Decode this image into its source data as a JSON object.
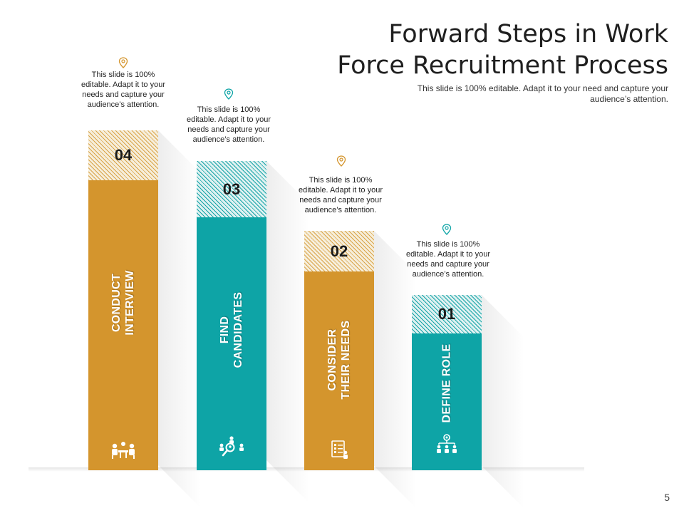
{
  "title": {
    "line1": "Forward Steps in Work",
    "line2": "Force Recruitment Process"
  },
  "subtitle": "This slide is 100% editable. Adapt it to your need and capture your audience’s attention.",
  "page_number": "5",
  "colors": {
    "gold": "#d4952d",
    "teal": "#0ea4a6"
  },
  "steps": [
    {
      "number": "04",
      "label_line1": "CONDUCT",
      "label_line2": "INTERVIEW",
      "color": "gold",
      "icon": "meeting-icon",
      "note": "This slide is 100% editable. Adapt it to your needs and capture your audience’s attention."
    },
    {
      "number": "03",
      "label_line1": "FIND",
      "label_line2": "CANDIDATES",
      "color": "teal",
      "icon": "candidate-search-icon",
      "note": "This slide is 100% editable. Adapt it to your needs and capture your audience’s attention."
    },
    {
      "number": "02",
      "label_line1": "CONSIDER",
      "label_line2": "THEIR NEEDS",
      "color": "gold",
      "icon": "checklist-icon",
      "note": "This slide is 100% editable. Adapt it to your needs and capture your audience’s attention."
    },
    {
      "number": "01",
      "label_line1": "DEFINE ROLE",
      "label_line2": "",
      "color": "teal",
      "icon": "team-gear-icon",
      "note": "This slide is 100% editable. Adapt it to your needs and capture your audience’s attention."
    }
  ]
}
